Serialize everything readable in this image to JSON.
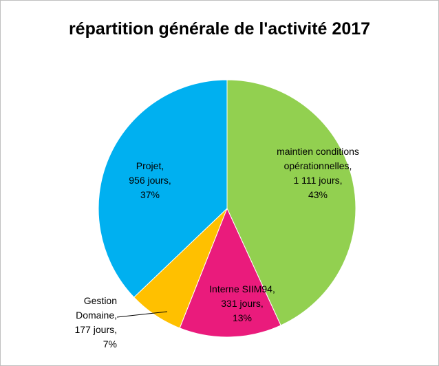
{
  "chart_data": {
    "type": "pie",
    "title": "répartition générale de l'activité 2017",
    "categories": [
      "maintien conditions opérationnelles,",
      "Interne SIIM94,",
      "Gestion Domaine,",
      "Projet,"
    ],
    "values": [
      1111,
      331,
      177,
      956
    ],
    "value_labels": [
      "1 111 jours,",
      "331 jours,",
      "177 jours,",
      "956 jours,"
    ],
    "percents": [
      43,
      13,
      7,
      37
    ],
    "percent_labels": [
      "43%",
      "13%",
      "7%",
      "37%"
    ],
    "colors": [
      "#92d050",
      "#ea1b7c",
      "#ffc000",
      "#00b0f0"
    ]
  }
}
